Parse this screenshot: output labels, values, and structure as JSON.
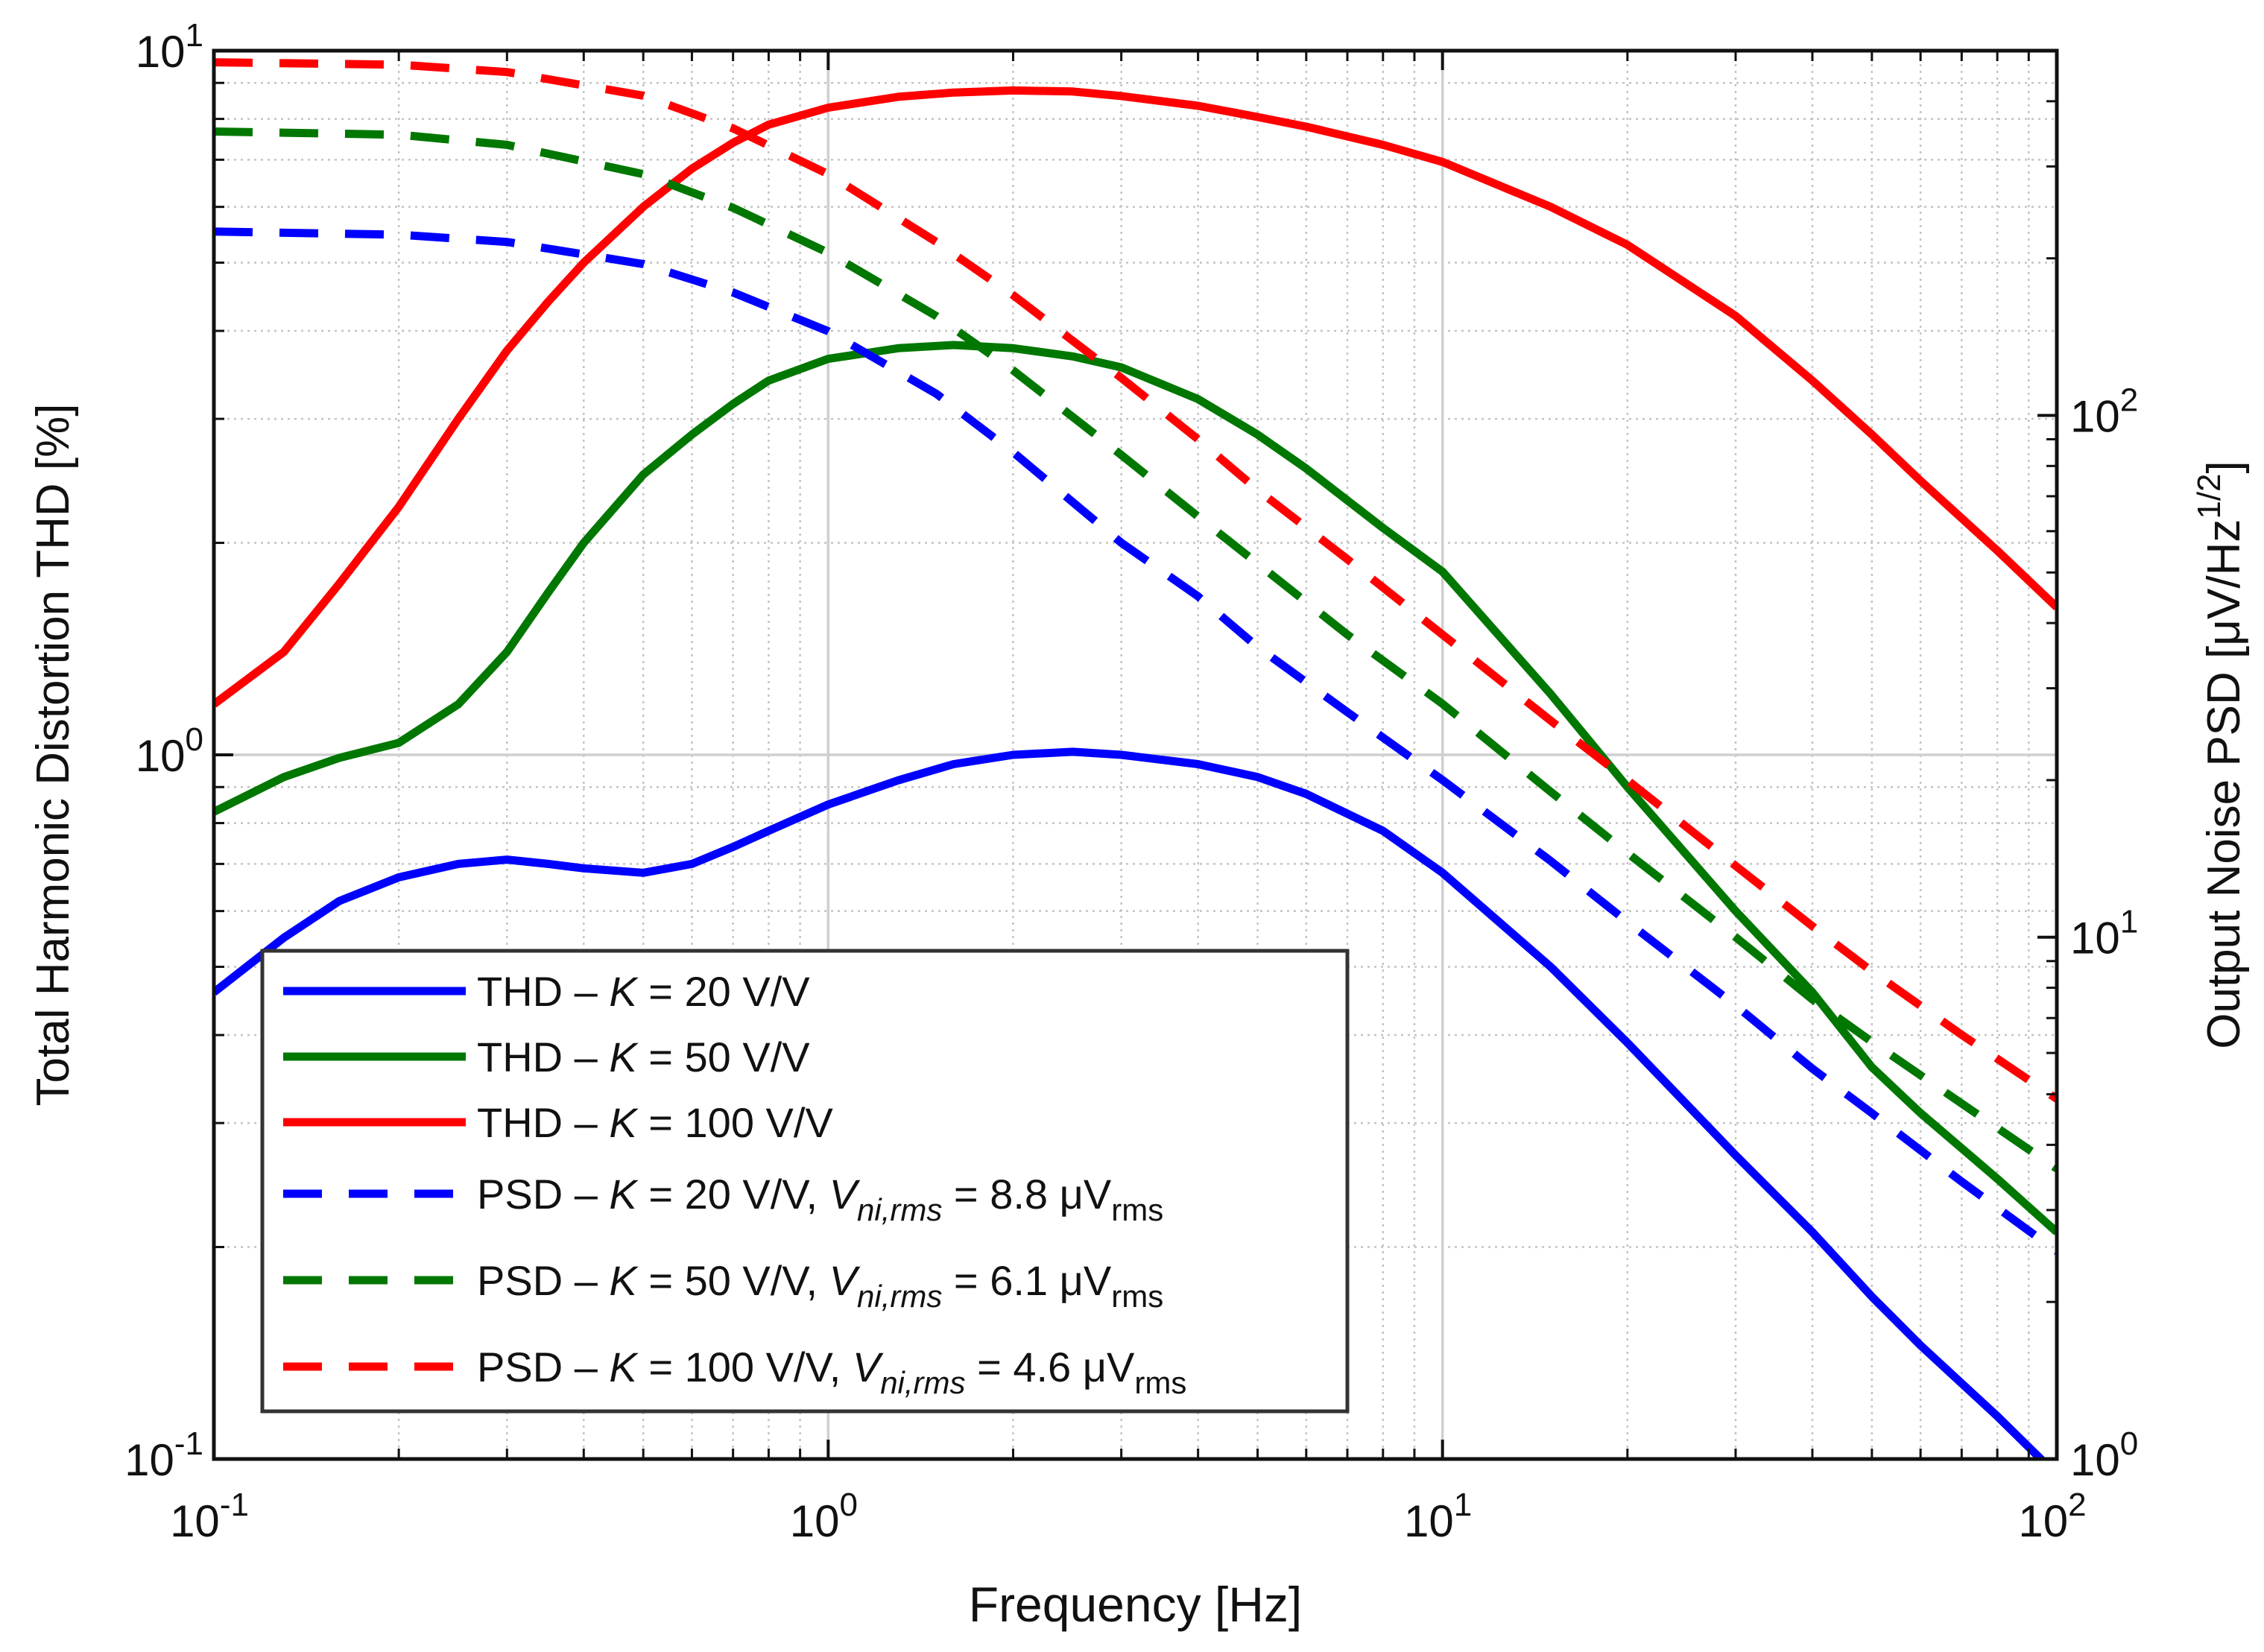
{
  "chart_data": {
    "type": "line",
    "xlabel": "Frequency [Hz]",
    "ylabel_left": "Total Harmonic Distortion THD [%]",
    "ylabel_right": "Output Noise PSD [μV/Hz",
    "ylabel_right_sup": "1/2",
    "ylabel_right_close": "]",
    "x_scale": "log",
    "y_left_scale": "log",
    "y_right_scale": "log",
    "xlim": [
      0.1,
      100
    ],
    "ylim_left": [
      0.1,
      10
    ],
    "ylim_right": [
      1,
      500
    ],
    "grid": true,
    "legend_position": "bottom-left",
    "x_ticks": [
      {
        "value": 0.1,
        "base": "10",
        "exp": "-1"
      },
      {
        "value": 1,
        "base": "10",
        "exp": "0"
      },
      {
        "value": 10,
        "base": "10",
        "exp": "1"
      },
      {
        "value": 100,
        "base": "10",
        "exp": "2"
      }
    ],
    "y_left_ticks": [
      {
        "value": 0.1,
        "base": "10",
        "exp": "-1"
      },
      {
        "value": 1,
        "base": "10",
        "exp": "0"
      },
      {
        "value": 10,
        "base": "10",
        "exp": "1"
      }
    ],
    "y_right_ticks": [
      {
        "value": 1,
        "base": "10",
        "exp": "0"
      },
      {
        "value": 10,
        "base": "10",
        "exp": "1"
      },
      {
        "value": 100,
        "base": "10",
        "exp": "2"
      }
    ],
    "series": [
      {
        "name": "THD – K = 20 V/V",
        "axis": "left",
        "color": "#0000ff",
        "style": "solid",
        "x": [
          0.1,
          0.13,
          0.16,
          0.2,
          0.25,
          0.3,
          0.35,
          0.4,
          0.5,
          0.6,
          0.7,
          0.8,
          1,
          1.3,
          1.6,
          2,
          2.5,
          3,
          4,
          5,
          6,
          8,
          10,
          15,
          20,
          30,
          40,
          50,
          60,
          80,
          100
        ],
        "y": [
          0.46,
          0.55,
          0.62,
          0.67,
          0.7,
          0.71,
          0.7,
          0.69,
          0.68,
          0.7,
          0.74,
          0.78,
          0.85,
          0.92,
          0.97,
          1.0,
          1.01,
          1.0,
          0.97,
          0.93,
          0.88,
          0.78,
          0.68,
          0.5,
          0.39,
          0.27,
          0.21,
          0.17,
          0.145,
          0.115,
          0.095
        ]
      },
      {
        "name": "THD – K = 50 V/V",
        "axis": "left",
        "color": "#007700",
        "style": "solid",
        "x": [
          0.1,
          0.13,
          0.16,
          0.2,
          0.25,
          0.3,
          0.35,
          0.4,
          0.5,
          0.6,
          0.7,
          0.8,
          1,
          1.3,
          1.6,
          2,
          2.5,
          3,
          4,
          5,
          6,
          8,
          10,
          15,
          20,
          30,
          40,
          50,
          60,
          80,
          100
        ],
        "y": [
          0.83,
          0.93,
          0.99,
          1.04,
          1.18,
          1.4,
          1.7,
          2.0,
          2.5,
          2.85,
          3.15,
          3.4,
          3.65,
          3.78,
          3.82,
          3.78,
          3.68,
          3.55,
          3.2,
          2.85,
          2.55,
          2.1,
          1.82,
          1.22,
          0.9,
          0.6,
          0.46,
          0.36,
          0.31,
          0.25,
          0.21
        ]
      },
      {
        "name": "THD – K = 100 V/V",
        "axis": "left",
        "color": "#ff0000",
        "style": "solid",
        "x": [
          0.1,
          0.13,
          0.16,
          0.2,
          0.25,
          0.3,
          0.35,
          0.4,
          0.5,
          0.6,
          0.7,
          0.8,
          1,
          1.3,
          1.6,
          2,
          2.5,
          3,
          4,
          5,
          6,
          8,
          10,
          15,
          20,
          30,
          40,
          50,
          60,
          80,
          100
        ],
        "y": [
          1.18,
          1.4,
          1.75,
          2.25,
          3.0,
          3.75,
          4.4,
          5.0,
          6.0,
          6.8,
          7.4,
          7.85,
          8.3,
          8.6,
          8.72,
          8.78,
          8.75,
          8.62,
          8.35,
          8.05,
          7.8,
          7.35,
          6.95,
          6.0,
          5.3,
          4.2,
          3.4,
          2.85,
          2.45,
          1.95,
          1.62
        ]
      },
      {
        "name": "PSD – K = 20 V/V, V",
        "sub": "ni,rms",
        "suffix": " = 8.8 μV",
        "suffix_sub": "rms",
        "axis": "right",
        "color": "#0000ff",
        "style": "dashed",
        "x": [
          0.1,
          0.2,
          0.3,
          0.5,
          0.7,
          1,
          1.5,
          2,
          3,
          4,
          5,
          7,
          10,
          15,
          20,
          30,
          40,
          50,
          70,
          100
        ],
        "y": [
          225,
          222,
          215,
          195,
          172,
          145,
          110,
          85,
          57,
          45,
          36,
          27,
          20,
          14,
          10.7,
          7.4,
          5.6,
          4.6,
          3.4,
          2.5
        ]
      },
      {
        "name": "PSD – K = 50 V/V, V",
        "sub": "ni,rms",
        "suffix": " = 6.1 μV",
        "suffix_sub": "rms",
        "axis": "right",
        "color": "#007700",
        "style": "dashed",
        "x": [
          0.1,
          0.2,
          0.3,
          0.5,
          0.7,
          1,
          1.5,
          2,
          3,
          4,
          5,
          7,
          10,
          15,
          20,
          30,
          40,
          50,
          70,
          100
        ],
        "y": [
          350,
          345,
          330,
          290,
          250,
          205,
          155,
          122,
          84,
          64,
          52,
          38,
          28,
          19,
          14.5,
          10,
          7.6,
          6.3,
          4.8,
          3.6
        ]
      },
      {
        "name": "PSD – K = 100 V/V, V",
        "sub": "ni,rms",
        "suffix": " = 4.6 μV",
        "suffix_sub": "rms",
        "axis": "right",
        "color": "#ff0000",
        "style": "dashed",
        "x": [
          0.1,
          0.2,
          0.3,
          0.5,
          0.7,
          1,
          1.5,
          2,
          3,
          4,
          5,
          7,
          10,
          15,
          20,
          30,
          40,
          50,
          70,
          100
        ],
        "y": [
          475,
          470,
          455,
          410,
          355,
          290,
          215,
          170,
          118,
          90,
          72,
          53,
          38,
          26,
          20,
          13.7,
          10.5,
          8.6,
          6.5,
          4.9
        ]
      }
    ]
  }
}
